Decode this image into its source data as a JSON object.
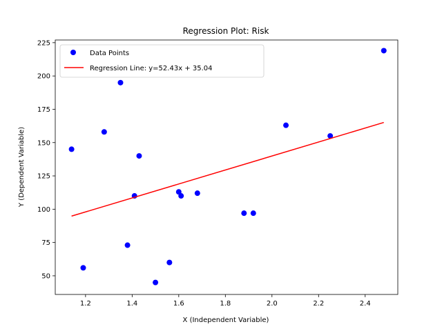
{
  "chart_data": {
    "type": "scatter",
    "title": "Regression Plot: Risk",
    "xlabel": "X (Independent Variable)",
    "ylabel": "Y (Dependent Variable)",
    "xlim": [
      1.07,
      2.54
    ],
    "ylim": [
      36,
      227
    ],
    "xticks": [
      1.2,
      1.4,
      1.6,
      1.8,
      2.0,
      2.2,
      2.4
    ],
    "xtick_labels": [
      "1.2",
      "1.4",
      "1.6",
      "1.8",
      "2.0",
      "2.2",
      "2.4"
    ],
    "yticks": [
      50,
      75,
      100,
      125,
      150,
      175,
      200,
      225
    ],
    "ytick_labels": [
      "50",
      "75",
      "100",
      "125",
      "150",
      "175",
      "200",
      "225"
    ],
    "grid": false,
    "legend_position": "top-left",
    "series": [
      {
        "name": "Data Points",
        "kind": "scatter",
        "color": "#0000ff",
        "points": [
          {
            "x": 1.14,
            "y": 145
          },
          {
            "x": 1.19,
            "y": 56
          },
          {
            "x": 1.28,
            "y": 158
          },
          {
            "x": 1.35,
            "y": 195
          },
          {
            "x": 1.38,
            "y": 73
          },
          {
            "x": 1.41,
            "y": 110
          },
          {
            "x": 1.43,
            "y": 140
          },
          {
            "x": 1.5,
            "y": 45
          },
          {
            "x": 1.56,
            "y": 60
          },
          {
            "x": 1.6,
            "y": 113
          },
          {
            "x": 1.61,
            "y": 110
          },
          {
            "x": 1.68,
            "y": 112
          },
          {
            "x": 1.88,
            "y": 97
          },
          {
            "x": 1.92,
            "y": 97
          },
          {
            "x": 2.06,
            "y": 163
          },
          {
            "x": 2.25,
            "y": 155
          },
          {
            "x": 2.48,
            "y": 219
          }
        ]
      },
      {
        "name": "Regression Line: y=52.43x + 35.04",
        "kind": "line",
        "color": "#ff0000",
        "points": [
          {
            "x": 1.14,
            "y": 94.8
          },
          {
            "x": 2.48,
            "y": 165.1
          }
        ]
      }
    ]
  }
}
